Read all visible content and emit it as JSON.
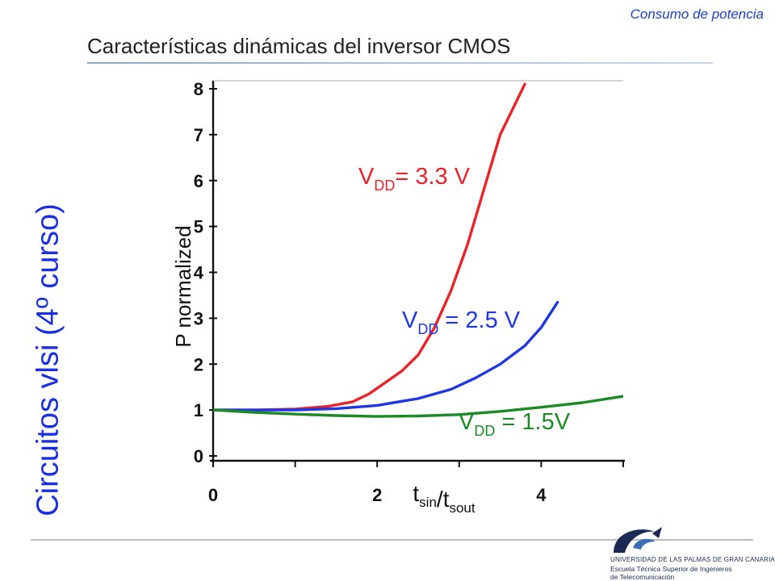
{
  "slide": {
    "header_tag": "Consumo de potencia",
    "title": "Características dinámicas del inversor CMOS",
    "side_label": "Circuitos vlsi (4º curso)"
  },
  "logo": {
    "line1": "UNIVERSIDAD DE LAS PALMAS DE GRAN CANARIA",
    "line2": "Escuela Técnica Superior de Ingenieros",
    "line3": "de Telecomunicación"
  },
  "chart_data": {
    "type": "line",
    "title": "",
    "xlabel": "t_sin/t_sout",
    "ylabel": "P normalized",
    "xlim": [
      0,
      5
    ],
    "ylim": [
      0,
      8
    ],
    "x_ticks": [
      "0",
      "2",
      "4"
    ],
    "y_ticks": [
      "0",
      "1",
      "2",
      "3",
      "4",
      "5",
      "6",
      "7",
      "8"
    ],
    "grid": false,
    "series": [
      {
        "name": "V_DD= 3.3 V",
        "color": "#e8232a",
        "points": [
          [
            0,
            1.0
          ],
          [
            0.5,
            1.0
          ],
          [
            1.0,
            1.02
          ],
          [
            1.4,
            1.08
          ],
          [
            1.7,
            1.18
          ],
          [
            1.9,
            1.35
          ],
          [
            2.1,
            1.6
          ],
          [
            2.3,
            1.85
          ],
          [
            2.5,
            2.2
          ],
          [
            2.7,
            2.8
          ],
          [
            2.9,
            3.6
          ],
          [
            3.1,
            4.6
          ],
          [
            3.3,
            5.8
          ],
          [
            3.5,
            7.0
          ],
          [
            3.8,
            8.1
          ]
        ]
      },
      {
        "name": "V_DD = 2.5 V",
        "color": "#1f37e0",
        "points": [
          [
            0,
            1.0
          ],
          [
            0.5,
            1.0
          ],
          [
            1.0,
            1.0
          ],
          [
            1.5,
            1.03
          ],
          [
            2.0,
            1.1
          ],
          [
            2.5,
            1.25
          ],
          [
            2.9,
            1.45
          ],
          [
            3.2,
            1.7
          ],
          [
            3.5,
            2.0
          ],
          [
            3.8,
            2.4
          ],
          [
            4.0,
            2.8
          ],
          [
            4.2,
            3.35
          ]
        ]
      },
      {
        "name": "V_DD = 1.5V",
        "color": "#1c8a26",
        "points": [
          [
            0,
            1.0
          ],
          [
            0.5,
            0.95
          ],
          [
            1.0,
            0.91
          ],
          [
            1.5,
            0.88
          ],
          [
            2.0,
            0.86
          ],
          [
            2.5,
            0.87
          ],
          [
            3.0,
            0.9
          ],
          [
            3.5,
            0.97
          ],
          [
            4.0,
            1.06
          ],
          [
            4.5,
            1.16
          ],
          [
            5.0,
            1.3
          ]
        ]
      }
    ]
  }
}
